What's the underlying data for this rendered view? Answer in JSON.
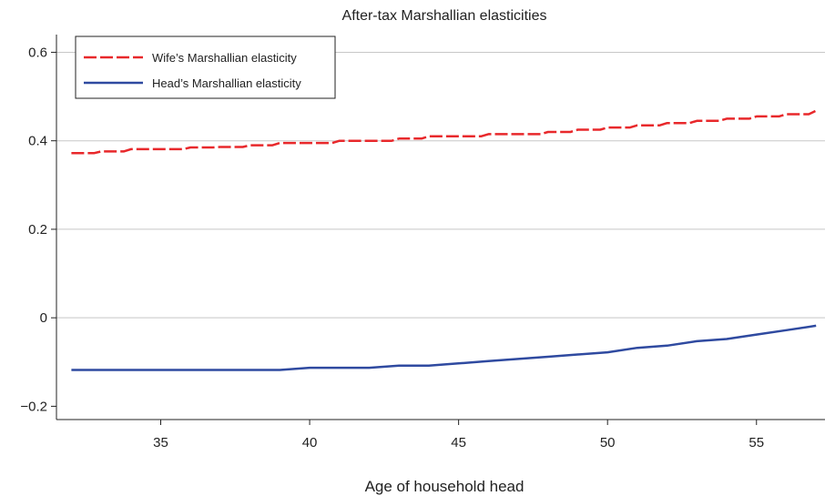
{
  "chart_data": {
    "type": "line",
    "title": "After-tax Marshallian elasticities",
    "xlabel": "Age of household head",
    "ylabel": "",
    "xlim": [
      31.5,
      57.3
    ],
    "ylim": [
      -0.23,
      0.64
    ],
    "xticks": [
      35,
      40,
      45,
      50,
      55
    ],
    "yticks": [
      -0.2,
      0,
      0.2,
      0.4,
      0.6
    ],
    "ytick_labels": [
      "−0.2",
      "0",
      "0.2",
      "0.4",
      "0.6"
    ],
    "grid": "horizontal",
    "legend_position": "top-left",
    "x": [
      32,
      33,
      34,
      35,
      36,
      37,
      38,
      39,
      40,
      41,
      42,
      43,
      44,
      45,
      46,
      47,
      48,
      49,
      50,
      51,
      52,
      53,
      54,
      55,
      56,
      57
    ],
    "series": [
      {
        "name": "Wife’s Marshallian elasticity",
        "color": "#e8282b",
        "style": "dashed",
        "values": [
          0.372,
          0.376,
          0.381,
          0.381,
          0.385,
          0.386,
          0.39,
          0.395,
          0.395,
          0.4,
          0.4,
          0.405,
          0.41,
          0.41,
          0.415,
          0.415,
          0.42,
          0.425,
          0.43,
          0.435,
          0.44,
          0.445,
          0.45,
          0.455,
          0.46,
          0.468
        ]
      },
      {
        "name": "Head’s Marshallian elasticity",
        "color": "#2f4aa0",
        "style": "solid",
        "values": [
          -0.118,
          -0.118,
          -0.118,
          -0.118,
          -0.118,
          -0.118,
          -0.118,
          -0.118,
          -0.113,
          -0.113,
          -0.113,
          -0.108,
          -0.108,
          -0.103,
          -0.098,
          -0.093,
          -0.088,
          -0.083,
          -0.078,
          -0.068,
          -0.063,
          -0.053,
          -0.048,
          -0.038,
          -0.028,
          -0.018
        ]
      }
    ]
  }
}
